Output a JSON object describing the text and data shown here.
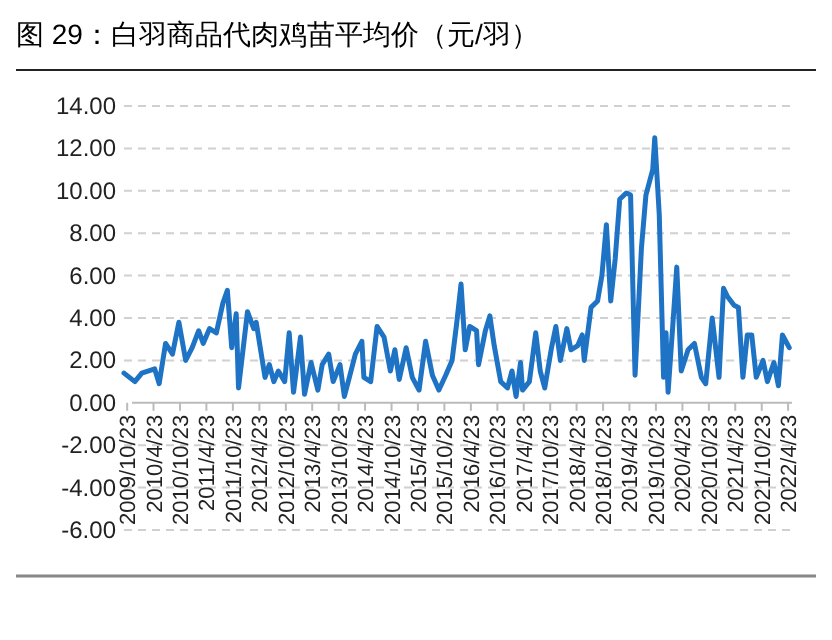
{
  "chart_data": {
    "type": "line",
    "title": "图 29：白羽商品代肉鸡苗平均价（元/羽）",
    "x": [
      "2009-10-01",
      "2009-12-15",
      "2010-02-01",
      "2010-05-01",
      "2010-06-01",
      "2010-07-15",
      "2010-09-01",
      "2010-10-15",
      "2010-12-01",
      "2011-01-15",
      "2011-03-01",
      "2011-04-01",
      "2011-05-15",
      "2011-07-01",
      "2011-08-15",
      "2011-09-15",
      "2011-10-15",
      "2011-11-15",
      "2011-12-01",
      "2012-02-01",
      "2012-03-15",
      "2012-04-01",
      "2012-06-01",
      "2012-07-01",
      "2012-08-01",
      "2012-09-01",
      "2012-10-15",
      "2012-11-15",
      "2012-12-15",
      "2013-02-01",
      "2013-03-01",
      "2013-04-15",
      "2013-06-01",
      "2013-07-01",
      "2013-08-15",
      "2013-09-15",
      "2013-11-01",
      "2013-12-01",
      "2014-01-01",
      "2014-02-15",
      "2014-04-01",
      "2014-04-15",
      "2014-06-01",
      "2014-07-15",
      "2014-09-01",
      "2014-10-15",
      "2014-11-15",
      "2014-12-15",
      "2015-02-01",
      "2015-03-15",
      "2015-05-01",
      "2015-06-15",
      "2015-08-01",
      "2015-09-15",
      "2015-11-01",
      "2015-12-15",
      "2016-01-15",
      "2016-02-15",
      "2016-03-15",
      "2016-04-15",
      "2016-06-01",
      "2016-06-15",
      "2016-08-01",
      "2016-09-01",
      "2016-10-01",
      "2016-11-15",
      "2017-01-01",
      "2017-02-01",
      "2017-03-01",
      "2017-04-01",
      "2017-04-15",
      "2017-06-01",
      "2017-07-15",
      "2017-08-15",
      "2017-09-15",
      "2017-11-01",
      "2017-12-01",
      "2018-01-01",
      "2018-02-15",
      "2018-03-15",
      "2018-05-01",
      "2018-06-01",
      "2018-06-15",
      "2018-08-01",
      "2018-09-15",
      "2018-10-15",
      "2018-11-15",
      "2018-12-15",
      "2019-01-15",
      "2019-02-15",
      "2019-04-01",
      "2019-05-01",
      "2019-06-01",
      "2019-07-15",
      "2019-08-15",
      "2019-10-01",
      "2019-10-15",
      "2019-11-15",
      "2019-12-15",
      "2020-01-01",
      "2020-01-15",
      "2020-02-15",
      "2020-03-15",
      "2020-04-15",
      "2020-06-01",
      "2020-07-15",
      "2020-09-01",
      "2020-10-01",
      "2020-11-15",
      "2021-01-01",
      "2021-02-01",
      "2021-03-01",
      "2021-04-15",
      "2021-05-15",
      "2021-06-15",
      "2021-07-15",
      "2021-08-15",
      "2021-09-15",
      "2021-11-01",
      "2021-12-01",
      "2022-01-15",
      "2022-02-15",
      "2022-03-15",
      "2022-05-01"
    ],
    "values": [
      1.4,
      1.0,
      1.4,
      1.6,
      0.9,
      2.8,
      2.3,
      3.8,
      2.0,
      2.6,
      3.4,
      2.8,
      3.5,
      3.3,
      4.7,
      5.3,
      2.6,
      4.2,
      0.7,
      4.3,
      3.5,
      3.8,
      1.2,
      1.8,
      1.0,
      1.5,
      1.0,
      3.3,
      0.5,
      3.1,
      0.4,
      1.9,
      0.6,
      1.8,
      2.3,
      1.0,
      1.8,
      0.3,
      1.1,
      2.3,
      2.9,
      1.2,
      1.0,
      3.6,
      3.1,
      1.5,
      2.5,
      1.1,
      2.6,
      1.2,
      0.6,
      2.9,
      1.3,
      0.6,
      1.3,
      2.0,
      3.7,
      5.6,
      2.5,
      3.6,
      3.4,
      1.8,
      3.4,
      4.1,
      2.7,
      1.0,
      0.7,
      1.5,
      0.3,
      1.9,
      0.6,
      1.0,
      3.3,
      1.5,
      0.7,
      2.6,
      3.6,
      2.0,
      3.5,
      2.5,
      2.7,
      3.2,
      2.0,
      4.5,
      4.8,
      6.0,
      8.4,
      4.8,
      6.8,
      9.6,
      9.9,
      9.8,
      1.3,
      7.3,
      9.8,
      11.0,
      12.5,
      8.9,
      1.2,
      3.3,
      0.5,
      3.5,
      6.4,
      1.5,
      2.5,
      2.8,
      1.2,
      0.9,
      4.0,
      1.2,
      5.4,
      5.0,
      4.6,
      4.5,
      1.2,
      3.2,
      3.2,
      1.2,
      2.0,
      1.0,
      1.9,
      0.8,
      3.2,
      2.6
    ],
    "color": "#1f73c4",
    "xlim": [
      "2009-10-01",
      "2022-05-20"
    ],
    "xticks": [
      {
        "value": "2009-10-23",
        "label": "2009/10/23"
      },
      {
        "value": "2010-04-23",
        "label": "2010/4/23"
      },
      {
        "value": "2010-10-23",
        "label": "2010/10/23"
      },
      {
        "value": "2011-04-23",
        "label": "2011/4/23"
      },
      {
        "value": "2011-10-23",
        "label": "2011/10/23"
      },
      {
        "value": "2012-04-23",
        "label": "2012/4/23"
      },
      {
        "value": "2012-10-23",
        "label": "2012/10/23"
      },
      {
        "value": "2013-04-23",
        "label": "2013/4/23"
      },
      {
        "value": "2013-10-23",
        "label": "2013/10/23"
      },
      {
        "value": "2014-04-23",
        "label": "2014/4/23"
      },
      {
        "value": "2014-10-23",
        "label": "2014/10/23"
      },
      {
        "value": "2015-04-23",
        "label": "2015/4/23"
      },
      {
        "value": "2015-10-23",
        "label": "2015/10/23"
      },
      {
        "value": "2016-04-23",
        "label": "2016/4/23"
      },
      {
        "value": "2016-10-23",
        "label": "2016/10/23"
      },
      {
        "value": "2017-04-23",
        "label": "2017/4/23"
      },
      {
        "value": "2017-10-23",
        "label": "2017/10/23"
      },
      {
        "value": "2018-04-23",
        "label": "2018/4/23"
      },
      {
        "value": "2018-10-23",
        "label": "2018/10/23"
      },
      {
        "value": "2019-04-23",
        "label": "2019/4/23"
      },
      {
        "value": "2019-10-23",
        "label": "2019/10/23"
      },
      {
        "value": "2020-04-23",
        "label": "2020/4/23"
      },
      {
        "value": "2020-10-23",
        "label": "2020/10/23"
      },
      {
        "value": "2021-04-23",
        "label": "2021/4/23"
      },
      {
        "value": "2021-10-23",
        "label": "2021/10/23"
      },
      {
        "value": "2022-04-23",
        "label": "2022/4/23"
      }
    ],
    "ylim": [
      -6,
      14
    ],
    "yticks": [
      {
        "value": -6,
        "label": "-6.00"
      },
      {
        "value": -4,
        "label": "-4.00"
      },
      {
        "value": -2,
        "label": "-2.00"
      },
      {
        "value": 0,
        "label": "0.00"
      },
      {
        "value": 2,
        "label": "2.00"
      },
      {
        "value": 4,
        "label": "4.00"
      },
      {
        "value": 6,
        "label": "6.00"
      },
      {
        "value": 8,
        "label": "8.00"
      },
      {
        "value": 10,
        "label": "10.00"
      },
      {
        "value": 12,
        "label": "12.00"
      },
      {
        "value": 14,
        "label": "14.00"
      }
    ],
    "grid": "y",
    "legend": false,
    "marker": "none",
    "line_style": "solid"
  }
}
